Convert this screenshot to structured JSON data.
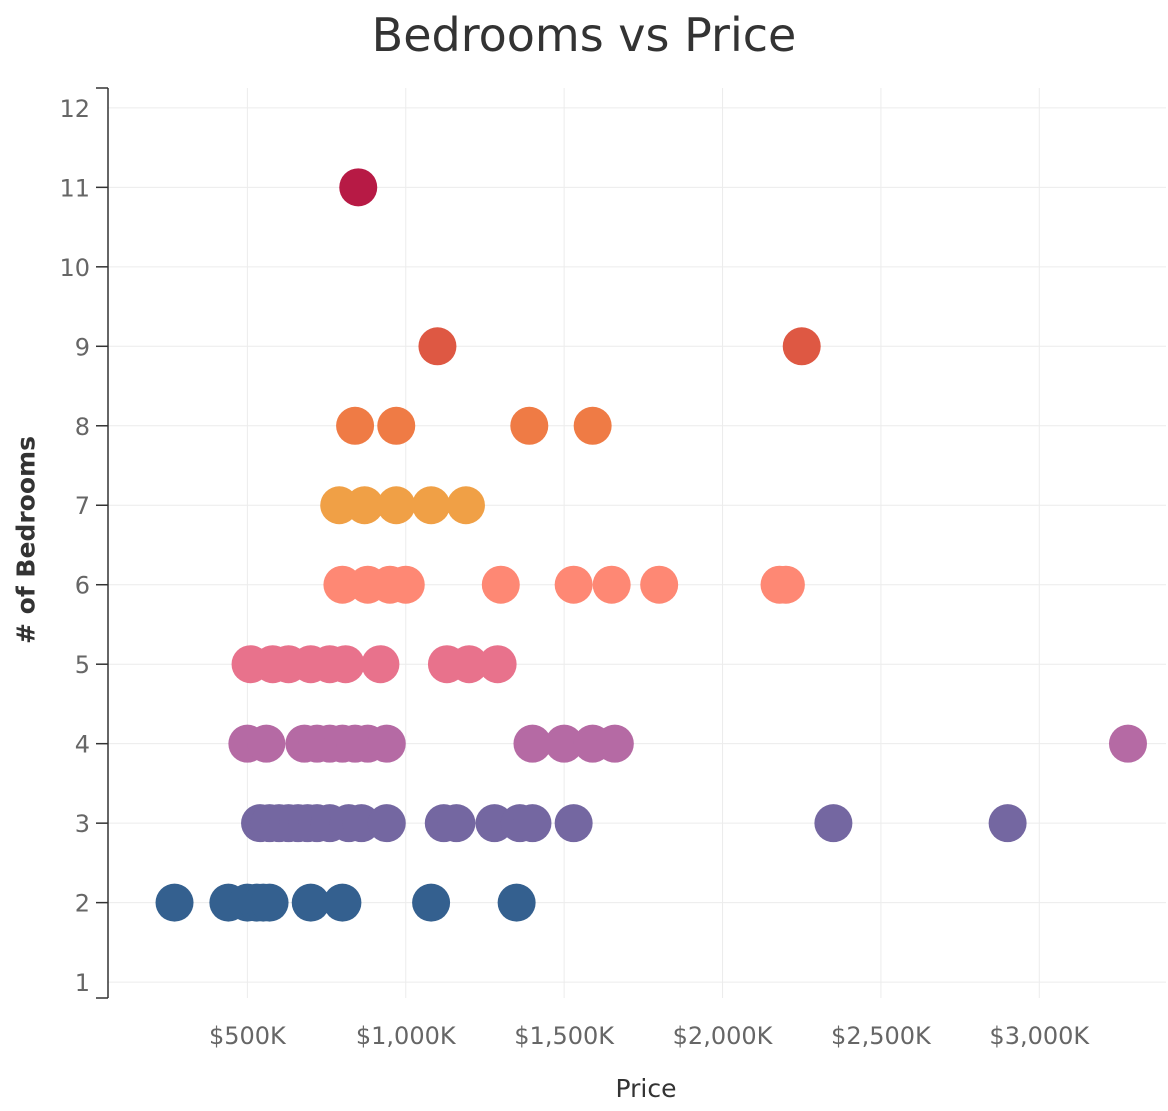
{
  "chart_data": {
    "type": "scatter",
    "title": "Bedrooms vs Price",
    "xlabel": "Price",
    "ylabel": "# of Bedrooms",
    "xlim": [
      60,
      3400
    ],
    "ylim": [
      0.8,
      12.25
    ],
    "x_ticks": [
      500,
      1000,
      1500,
      2000,
      2500,
      3000
    ],
    "x_tick_labels": [
      "$500K",
      "$1,000K",
      "$1,500K",
      "$2,000K",
      "$2,500K",
      "$3,000K"
    ],
    "y_ticks": [
      1,
      2,
      3,
      4,
      5,
      6,
      7,
      8,
      9,
      10,
      11,
      12
    ],
    "y_tick_labels": [
      "1",
      "2",
      "3",
      "4",
      "5",
      "6",
      "7",
      "8",
      "9",
      "10",
      "11",
      "12"
    ],
    "grid": true,
    "color_by": "bedrooms",
    "colors": {
      "2": "#34608f",
      "3": "#7467a1",
      "4": "#b56aa4",
      "5": "#e8728c",
      "6": "#fe8874",
      "7": "#f0a046",
      "8": "#ef7b45",
      "9": "#de5843",
      "11": "#b71a45"
    },
    "points": [
      {
        "x": 270,
        "y": 2
      },
      {
        "x": 440,
        "y": 2
      },
      {
        "x": 500,
        "y": 2
      },
      {
        "x": 530,
        "y": 2
      },
      {
        "x": 550,
        "y": 2
      },
      {
        "x": 570,
        "y": 2
      },
      {
        "x": 700,
        "y": 2
      },
      {
        "x": 800,
        "y": 2
      },
      {
        "x": 1080,
        "y": 2
      },
      {
        "x": 1350,
        "y": 2
      },
      {
        "x": 540,
        "y": 3
      },
      {
        "x": 570,
        "y": 3
      },
      {
        "x": 600,
        "y": 3
      },
      {
        "x": 630,
        "y": 3
      },
      {
        "x": 660,
        "y": 3
      },
      {
        "x": 690,
        "y": 3
      },
      {
        "x": 720,
        "y": 3
      },
      {
        "x": 760,
        "y": 3
      },
      {
        "x": 820,
        "y": 3
      },
      {
        "x": 860,
        "y": 3
      },
      {
        "x": 940,
        "y": 3
      },
      {
        "x": 1120,
        "y": 3
      },
      {
        "x": 1160,
        "y": 3
      },
      {
        "x": 1280,
        "y": 3
      },
      {
        "x": 1360,
        "y": 3
      },
      {
        "x": 1400,
        "y": 3
      },
      {
        "x": 1530,
        "y": 3
      },
      {
        "x": 2350,
        "y": 3
      },
      {
        "x": 2900,
        "y": 3
      },
      {
        "x": 500,
        "y": 4
      },
      {
        "x": 560,
        "y": 4
      },
      {
        "x": 680,
        "y": 4
      },
      {
        "x": 720,
        "y": 4
      },
      {
        "x": 760,
        "y": 4
      },
      {
        "x": 800,
        "y": 4
      },
      {
        "x": 840,
        "y": 4
      },
      {
        "x": 880,
        "y": 4
      },
      {
        "x": 940,
        "y": 4
      },
      {
        "x": 1400,
        "y": 4
      },
      {
        "x": 1500,
        "y": 4
      },
      {
        "x": 1590,
        "y": 4
      },
      {
        "x": 1660,
        "y": 4
      },
      {
        "x": 3280,
        "y": 4
      },
      {
        "x": 510,
        "y": 5
      },
      {
        "x": 580,
        "y": 5
      },
      {
        "x": 630,
        "y": 5
      },
      {
        "x": 700,
        "y": 5
      },
      {
        "x": 760,
        "y": 5
      },
      {
        "x": 810,
        "y": 5
      },
      {
        "x": 920,
        "y": 5
      },
      {
        "x": 1130,
        "y": 5
      },
      {
        "x": 1200,
        "y": 5
      },
      {
        "x": 1290,
        "y": 5
      },
      {
        "x": 800,
        "y": 6
      },
      {
        "x": 880,
        "y": 6
      },
      {
        "x": 950,
        "y": 6
      },
      {
        "x": 1000,
        "y": 6
      },
      {
        "x": 1300,
        "y": 6
      },
      {
        "x": 1530,
        "y": 6
      },
      {
        "x": 1650,
        "y": 6
      },
      {
        "x": 1800,
        "y": 6
      },
      {
        "x": 2180,
        "y": 6
      },
      {
        "x": 2200,
        "y": 6
      },
      {
        "x": 790,
        "y": 7
      },
      {
        "x": 870,
        "y": 7
      },
      {
        "x": 970,
        "y": 7
      },
      {
        "x": 1080,
        "y": 7
      },
      {
        "x": 1190,
        "y": 7
      },
      {
        "x": 840,
        "y": 8
      },
      {
        "x": 970,
        "y": 8
      },
      {
        "x": 1390,
        "y": 8
      },
      {
        "x": 1590,
        "y": 8
      },
      {
        "x": 1100,
        "y": 9
      },
      {
        "x": 2250,
        "y": 9
      },
      {
        "x": 850,
        "y": 11
      }
    ]
  }
}
